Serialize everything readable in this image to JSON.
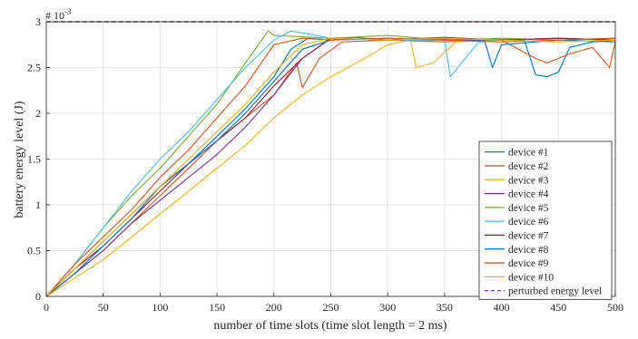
{
  "chart_data": {
    "type": "line",
    "xlabel": "number of time slots (time slot length = 2 ms)",
    "ylabel": "battery energy level (J)",
    "exponent_label": "# 10",
    "exponent_power": "-3",
    "xlim": [
      0,
      500
    ],
    "ylim": [
      0,
      3
    ],
    "xticks": [
      "0",
      "50",
      "100",
      "150",
      "200",
      "250",
      "300",
      "350",
      "400",
      "450",
      "500"
    ],
    "yticks": [
      "0",
      "0.5",
      "1",
      "1.5",
      "2",
      "2.5",
      "3"
    ],
    "grid": true,
    "legend_position": "bottom-right",
    "perturbed_level": {
      "name": "perturbed energy level",
      "value": 3.0,
      "color": "#7e2f8e",
      "style": "dashed"
    },
    "series": [
      {
        "name": "device #1",
        "color": "#0072bd",
        "x": [
          0,
          25,
          50,
          75,
          100,
          125,
          150,
          175,
          200,
          215,
          230,
          250,
          270,
          300,
          330,
          360,
          390,
          420,
          430,
          440,
          450,
          460,
          480,
          500
        ],
        "y": [
          0,
          0.3,
          0.6,
          0.9,
          1.2,
          1.45,
          1.75,
          2.05,
          2.4,
          2.7,
          2.82,
          2.8,
          2.83,
          2.8,
          2.82,
          2.8,
          2.81,
          2.8,
          2.42,
          2.4,
          2.45,
          2.72,
          2.78,
          2.8
        ]
      },
      {
        "name": "device #2",
        "color": "#d95319",
        "x": [
          0,
          25,
          50,
          75,
          100,
          125,
          150,
          175,
          200,
          220,
          225,
          240,
          260,
          300,
          350,
          400,
          430,
          440,
          460,
          480,
          495,
          500
        ],
        "y": [
          0,
          0.25,
          0.5,
          0.8,
          1.1,
          1.4,
          1.7,
          1.95,
          2.2,
          2.55,
          2.28,
          2.6,
          2.78,
          2.8,
          2.78,
          2.8,
          2.6,
          2.55,
          2.65,
          2.72,
          2.5,
          2.78
        ]
      },
      {
        "name": "device #3",
        "color": "#edb120",
        "x": [
          0,
          25,
          50,
          75,
          100,
          125,
          150,
          175,
          200,
          225,
          250,
          280,
          300,
          320,
          325,
          340,
          360,
          400,
          450,
          500
        ],
        "y": [
          0,
          0.2,
          0.4,
          0.65,
          0.9,
          1.15,
          1.4,
          1.65,
          1.95,
          2.2,
          2.4,
          2.6,
          2.75,
          2.8,
          2.5,
          2.55,
          2.78,
          2.8,
          2.78,
          2.8
        ]
      },
      {
        "name": "device #4",
        "color": "#7e2f8e",
        "x": [
          0,
          25,
          50,
          75,
          100,
          125,
          150,
          175,
          200,
          225,
          250,
          300,
          350,
          400,
          450,
          500
        ],
        "y": [
          0,
          0.25,
          0.5,
          0.8,
          1.05,
          1.3,
          1.55,
          1.85,
          2.2,
          2.6,
          2.82,
          2.8,
          2.83,
          2.8,
          2.82,
          2.8
        ]
      },
      {
        "name": "device #5",
        "color": "#77ac30",
        "x": [
          0,
          25,
          50,
          75,
          100,
          125,
          150,
          175,
          195,
          200,
          250,
          300,
          350,
          400,
          450,
          500
        ],
        "y": [
          0,
          0.35,
          0.75,
          1.1,
          1.4,
          1.75,
          2.1,
          2.55,
          2.9,
          2.85,
          2.82,
          2.85,
          2.8,
          2.82,
          2.8,
          2.82
        ]
      },
      {
        "name": "device #6",
        "color": "#4dbeee",
        "x": [
          0,
          25,
          50,
          75,
          100,
          125,
          150,
          175,
          200,
          215,
          250,
          300,
          350,
          355,
          365,
          380,
          400,
          450,
          500
        ],
        "y": [
          0,
          0.35,
          0.75,
          1.15,
          1.5,
          1.8,
          2.15,
          2.5,
          2.8,
          2.9,
          2.82,
          2.8,
          2.8,
          2.4,
          2.55,
          2.78,
          2.8,
          2.82,
          2.8
        ]
      },
      {
        "name": "device #7",
        "color": "#a2142f",
        "x": [
          0,
          25,
          50,
          75,
          100,
          125,
          150,
          175,
          200,
          225,
          250,
          300,
          350,
          400,
          450,
          500
        ],
        "y": [
          0,
          0.3,
          0.55,
          0.85,
          1.15,
          1.45,
          1.7,
          1.95,
          2.3,
          2.6,
          2.82,
          2.8,
          2.82,
          2.8,
          2.82,
          2.8
        ]
      },
      {
        "name": "device #8",
        "color": "#0072bd",
        "x": [
          0,
          25,
          50,
          75,
          100,
          125,
          150,
          175,
          200,
          225,
          250,
          300,
          350,
          385,
          392,
          400,
          450,
          500
        ],
        "y": [
          0,
          0.25,
          0.55,
          0.85,
          1.2,
          1.45,
          1.7,
          2.0,
          2.35,
          2.7,
          2.8,
          2.82,
          2.8,
          2.8,
          2.5,
          2.75,
          2.8,
          2.78
        ]
      },
      {
        "name": "device #9",
        "color": "#d95319",
        "x": [
          0,
          25,
          50,
          75,
          100,
          125,
          150,
          175,
          200,
          225,
          250,
          300,
          350,
          400,
          450,
          500
        ],
        "y": [
          0,
          0.35,
          0.65,
          0.95,
          1.3,
          1.6,
          1.95,
          2.3,
          2.75,
          2.82,
          2.8,
          2.82,
          2.8,
          2.78,
          2.8,
          2.82
        ]
      },
      {
        "name": "device #10",
        "color": "#edb120",
        "x": [
          0,
          25,
          50,
          75,
          100,
          125,
          150,
          175,
          200,
          225,
          250,
          300,
          350,
          400,
          450,
          500
        ],
        "y": [
          0,
          0.3,
          0.6,
          0.9,
          1.2,
          1.5,
          1.8,
          2.1,
          2.45,
          2.75,
          2.82,
          2.8,
          2.82,
          2.8,
          2.78,
          2.8
        ]
      }
    ]
  }
}
